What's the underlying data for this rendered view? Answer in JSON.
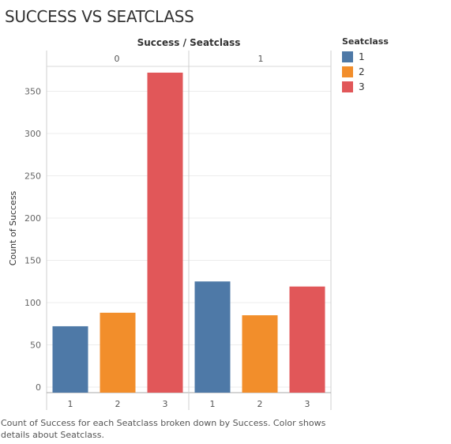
{
  "page": {
    "title": "SUCCESS VS SEATCLASS",
    "caption": "Count of Success for each Seatclass broken down by Success.  Color shows details about Seatclass."
  },
  "legend": {
    "title": "Seatclass",
    "items": [
      {
        "label": "1",
        "color": "#4e79a7"
      },
      {
        "label": "2",
        "color": "#f28e2b"
      },
      {
        "label": "3",
        "color": "#e15759"
      }
    ]
  },
  "chart_data": {
    "type": "bar",
    "title": "SUCCESS VS SEATCLASS",
    "header": "Success / Seatclass",
    "ylabel": "Count of Success",
    "ylim": [
      0,
      390
    ],
    "yticks": [
      0,
      50,
      100,
      150,
      200,
      250,
      300,
      350
    ],
    "grid": true,
    "legend_position": "top-right",
    "panels": [
      {
        "success": "0",
        "categories": [
          "1",
          "2",
          "3"
        ],
        "values": [
          72,
          88,
          372
        ]
      },
      {
        "success": "1",
        "categories": [
          "1",
          "2",
          "3"
        ],
        "values": [
          125,
          85,
          119
        ]
      }
    ],
    "colors": {
      "1": "#4e79a7",
      "2": "#f28e2b",
      "3": "#e15759"
    }
  }
}
